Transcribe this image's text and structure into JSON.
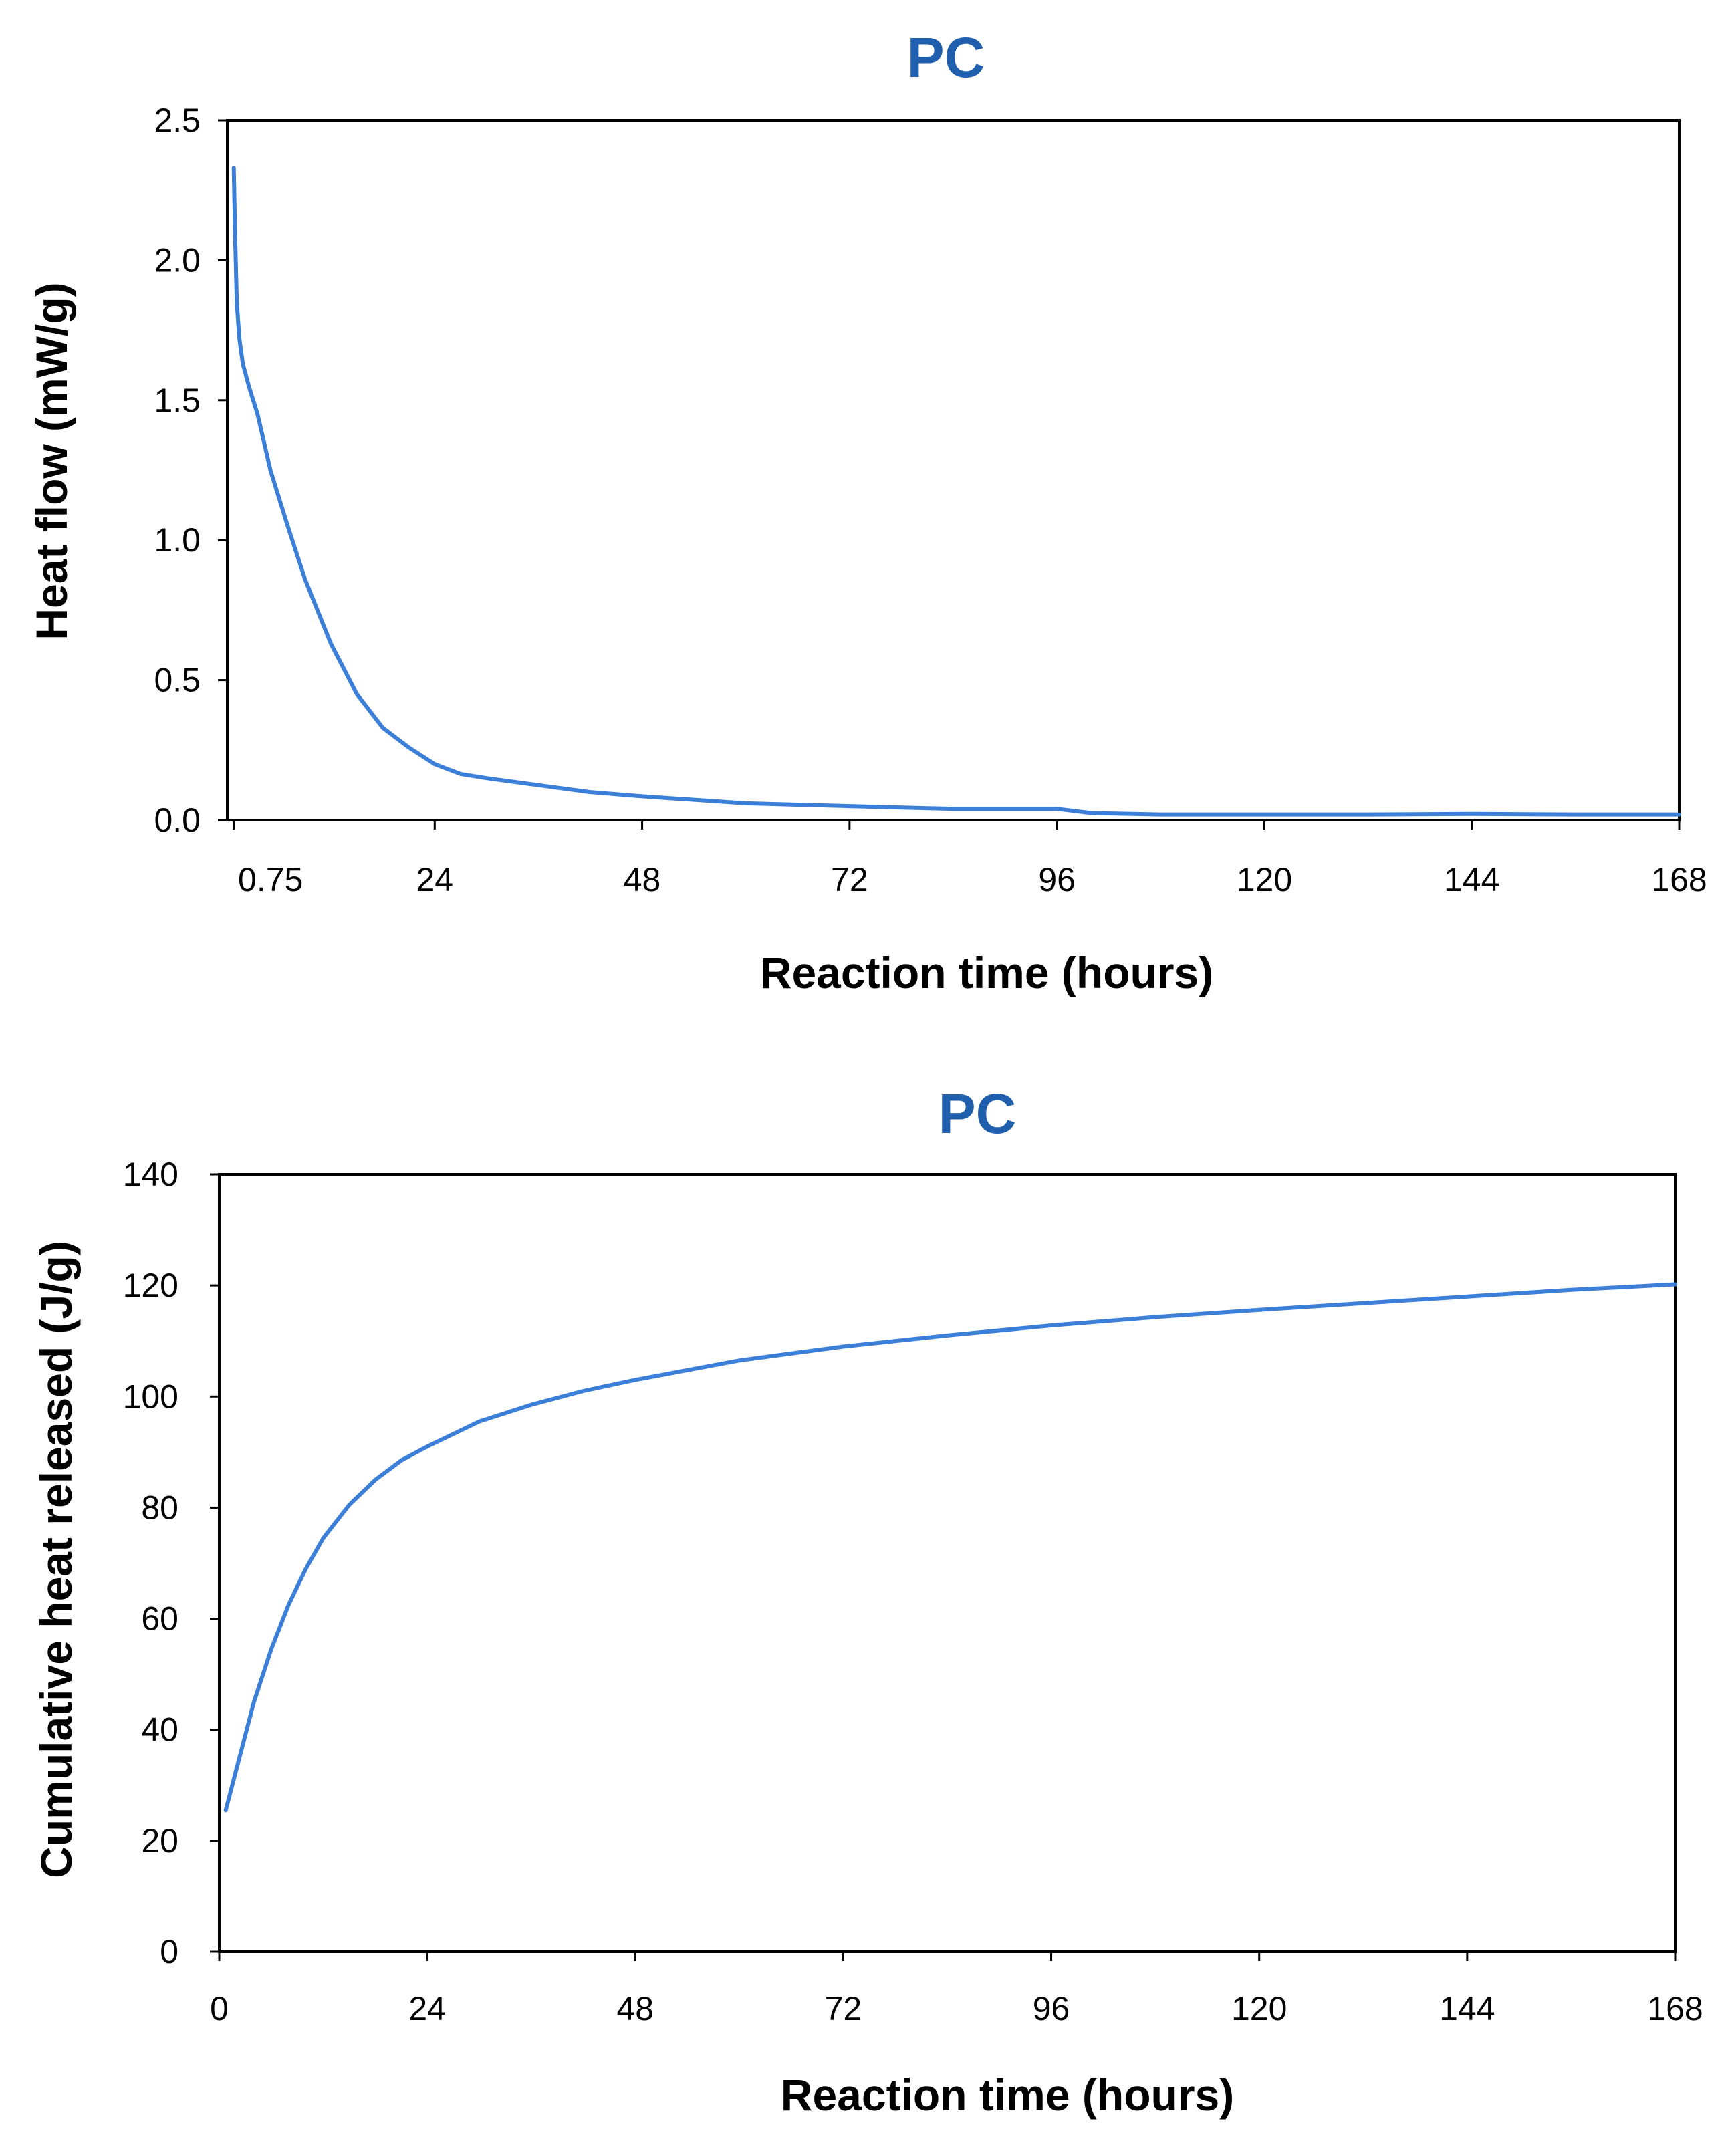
{
  "chart_data": [
    {
      "type": "line",
      "title": "PC",
      "title_color": "#1f5fad",
      "line_color": "#3b7fd8",
      "xlabel": "Reaction time (hours)",
      "ylabel": "Heat flow (mW/g)",
      "xlim": [
        0,
        168
      ],
      "ylim": [
        0,
        2.5
      ],
      "x_ticks": [
        0.75,
        24,
        48,
        72,
        96,
        120,
        144,
        168
      ],
      "x_tick_labels": [
        "0.75",
        "24",
        "48",
        "72",
        "96",
        "120",
        "144",
        "168"
      ],
      "y_ticks": [
        0,
        0.5,
        1.0,
        1.5,
        2.0,
        2.5
      ],
      "y_tick_labels": [
        "0.0",
        "0.5",
        "1.0",
        "1.5",
        "2.0",
        "2.5"
      ],
      "grid": false,
      "series": [
        {
          "name": "PC",
          "x": [
            0.75,
            0.9,
            1.1,
            1.4,
            1.8,
            2.5,
            3.5,
            5,
            7,
            9,
            12,
            15,
            18,
            21,
            24,
            27,
            30,
            36,
            42,
            48,
            60,
            72,
            84,
            96,
            100,
            108,
            120,
            132,
            144,
            156,
            168
          ],
          "y": [
            2.33,
            2.1,
            1.85,
            1.72,
            1.63,
            1.55,
            1.45,
            1.25,
            1.05,
            0.86,
            0.63,
            0.45,
            0.33,
            0.26,
            0.2,
            0.165,
            0.15,
            0.125,
            0.1,
            0.085,
            0.06,
            0.05,
            0.04,
            0.04,
            0.025,
            0.02,
            0.02,
            0.02,
            0.022,
            0.02,
            0.02
          ]
        }
      ]
    },
    {
      "type": "line",
      "title": "PC",
      "title_color": "#1f5fad",
      "line_color": "#3b7fd8",
      "xlabel": "Reaction time (hours)",
      "ylabel": "Cumulative heat released (J/g)",
      "xlim": [
        0,
        168
      ],
      "ylim": [
        0,
        140
      ],
      "x_ticks": [
        0,
        24,
        48,
        72,
        96,
        120,
        144,
        168
      ],
      "x_tick_labels": [
        "0",
        "24",
        "48",
        "72",
        "96",
        "120",
        "144",
        "168"
      ],
      "y_ticks": [
        0,
        20,
        40,
        60,
        80,
        100,
        120,
        140
      ],
      "y_tick_labels": [
        "0",
        "20",
        "40",
        "60",
        "80",
        "100",
        "120",
        "140"
      ],
      "grid": false,
      "series": [
        {
          "name": "PC",
          "x": [
            0.75,
            2,
            4,
            6,
            8,
            10,
            12,
            15,
            18,
            21,
            24,
            30,
            36,
            42,
            48,
            60,
            72,
            84,
            96,
            108,
            120,
            132,
            144,
            156,
            168
          ],
          "y": [
            25.5,
            33,
            45,
            54.5,
            62.5,
            69,
            74.5,
            80.5,
            85,
            88.5,
            91,
            95.5,
            98.5,
            101,
            103,
            106.5,
            109,
            111,
            112.8,
            114.3,
            115.6,
            116.8,
            118,
            119.2,
            120.2
          ]
        }
      ]
    }
  ]
}
